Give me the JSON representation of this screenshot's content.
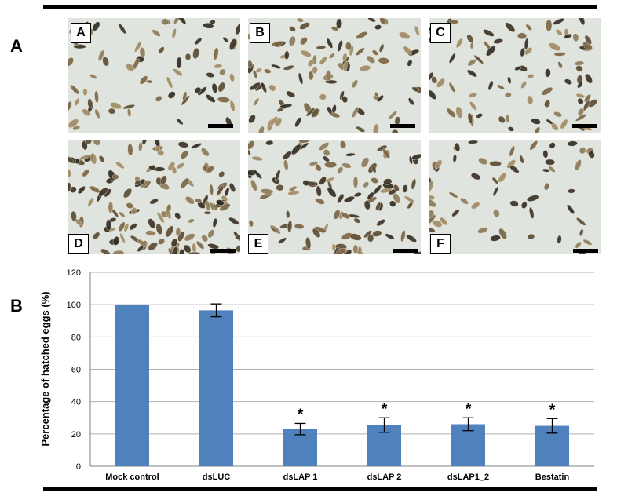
{
  "figure": {
    "panel_a_letter": "A",
    "panel_b_letter": "B",
    "photo_labels": [
      "A",
      "B",
      "C",
      "D",
      "E",
      "F"
    ]
  },
  "colors": {
    "bar": "#4f81bd",
    "grid": "#b0b0b0",
    "photo_background": "#dfe4df",
    "egg_dark": "#3a3024",
    "egg_light": "#a08a62"
  },
  "chart_data": {
    "type": "bar",
    "categories": [
      "Mock control",
      "dsLUC",
      "dsLAP 1",
      "dsLAP 2",
      "dsLAP1_2",
      "Bestatin"
    ],
    "values": [
      100,
      96.5,
      23,
      25.5,
      26,
      25
    ],
    "error": [
      0,
      4,
      3.5,
      4.5,
      4,
      4.5
    ],
    "significance": [
      "",
      "",
      "*",
      "*",
      "*",
      "*"
    ],
    "ylabel": "Percentage of hatched eggs (%)",
    "xlabel": "",
    "ylim": [
      0,
      120
    ],
    "yticks": [
      0,
      20,
      40,
      60,
      80,
      100,
      120
    ],
    "grid": true,
    "legend": "none"
  }
}
